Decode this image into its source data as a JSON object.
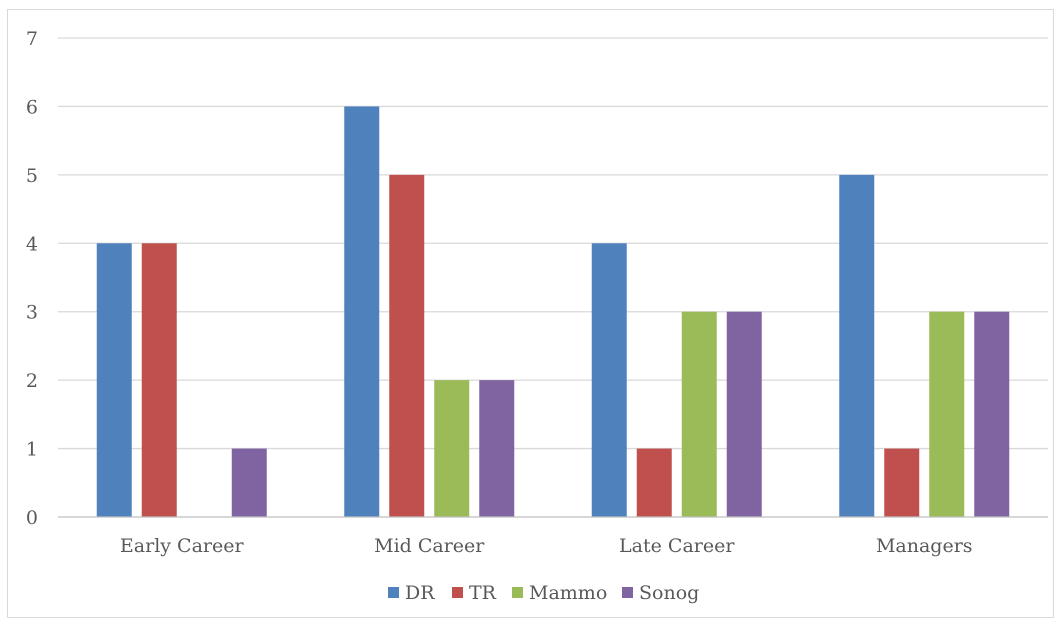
{
  "chart_data": {
    "type": "bar",
    "title": "",
    "xlabel": "",
    "ylabel": "",
    "categories": [
      "Early Career",
      "Mid Career",
      "Late Career",
      "Managers"
    ],
    "series": [
      {
        "name": "DR",
        "color": "#4f81bd",
        "values": [
          4,
          6,
          4,
          5
        ]
      },
      {
        "name": "TR",
        "color": "#c0504d",
        "values": [
          4,
          5,
          1,
          1
        ]
      },
      {
        "name": "Mammo",
        "color": "#9bbb59",
        "values": [
          0,
          2,
          3,
          3
        ]
      },
      {
        "name": "Sonog",
        "color": "#8064a2",
        "values": [
          1,
          2,
          3,
          3
        ]
      }
    ],
    "ylim": [
      0,
      7
    ],
    "yticks": [
      0,
      1,
      2,
      3,
      4,
      5,
      6,
      7
    ],
    "grid": true,
    "legend_position": "bottom"
  }
}
